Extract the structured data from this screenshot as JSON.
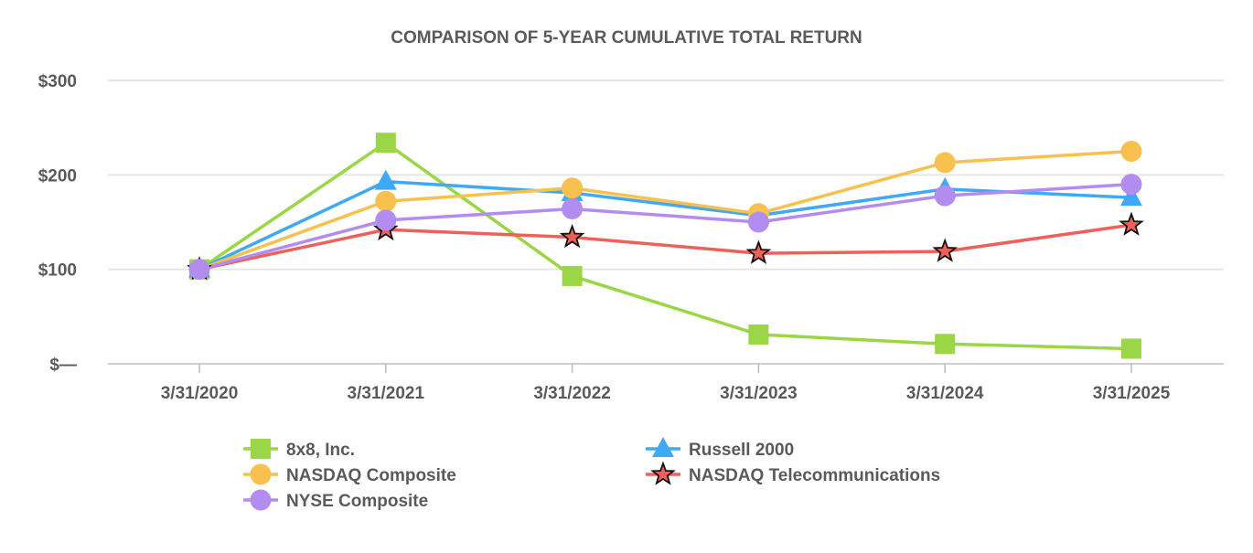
{
  "chart_data": {
    "type": "line",
    "title": "COMPARISON OF 5-YEAR CUMULATIVE TOTAL RETURN",
    "xlabel": "",
    "ylabel": "",
    "ylim": [
      0,
      300
    ],
    "yticks": [
      0,
      100,
      200,
      300
    ],
    "ytick_labels": [
      "$—",
      "$100",
      "$200",
      "$300"
    ],
    "categories": [
      "3/31/2020",
      "3/31/2021",
      "3/31/2022",
      "3/31/2023",
      "3/31/2024",
      "3/31/2025"
    ],
    "grid": true,
    "legend_position": "bottom",
    "series": [
      {
        "name": "8x8, Inc.",
        "marker": "square",
        "color": "#9ad645",
        "values": [
          100,
          234,
          93,
          31,
          21,
          16
        ]
      },
      {
        "name": "Russell 2000",
        "marker": "triangle",
        "color": "#3fa9f5",
        "values": [
          100,
          193,
          181,
          157,
          185,
          176
        ]
      },
      {
        "name": "NASDAQ Composite",
        "marker": "circle",
        "color": "#f7c04f",
        "values": [
          100,
          172,
          186,
          159,
          213,
          225
        ]
      },
      {
        "name": "NASDAQ Telecommunications",
        "marker": "star",
        "color": "#f0605a",
        "values": [
          100,
          142,
          134,
          117,
          119,
          147
        ]
      },
      {
        "name": "NYSE Composite",
        "marker": "circle",
        "color": "#b38cf0",
        "values": [
          100,
          152,
          164,
          150,
          178,
          190
        ]
      }
    ]
  }
}
